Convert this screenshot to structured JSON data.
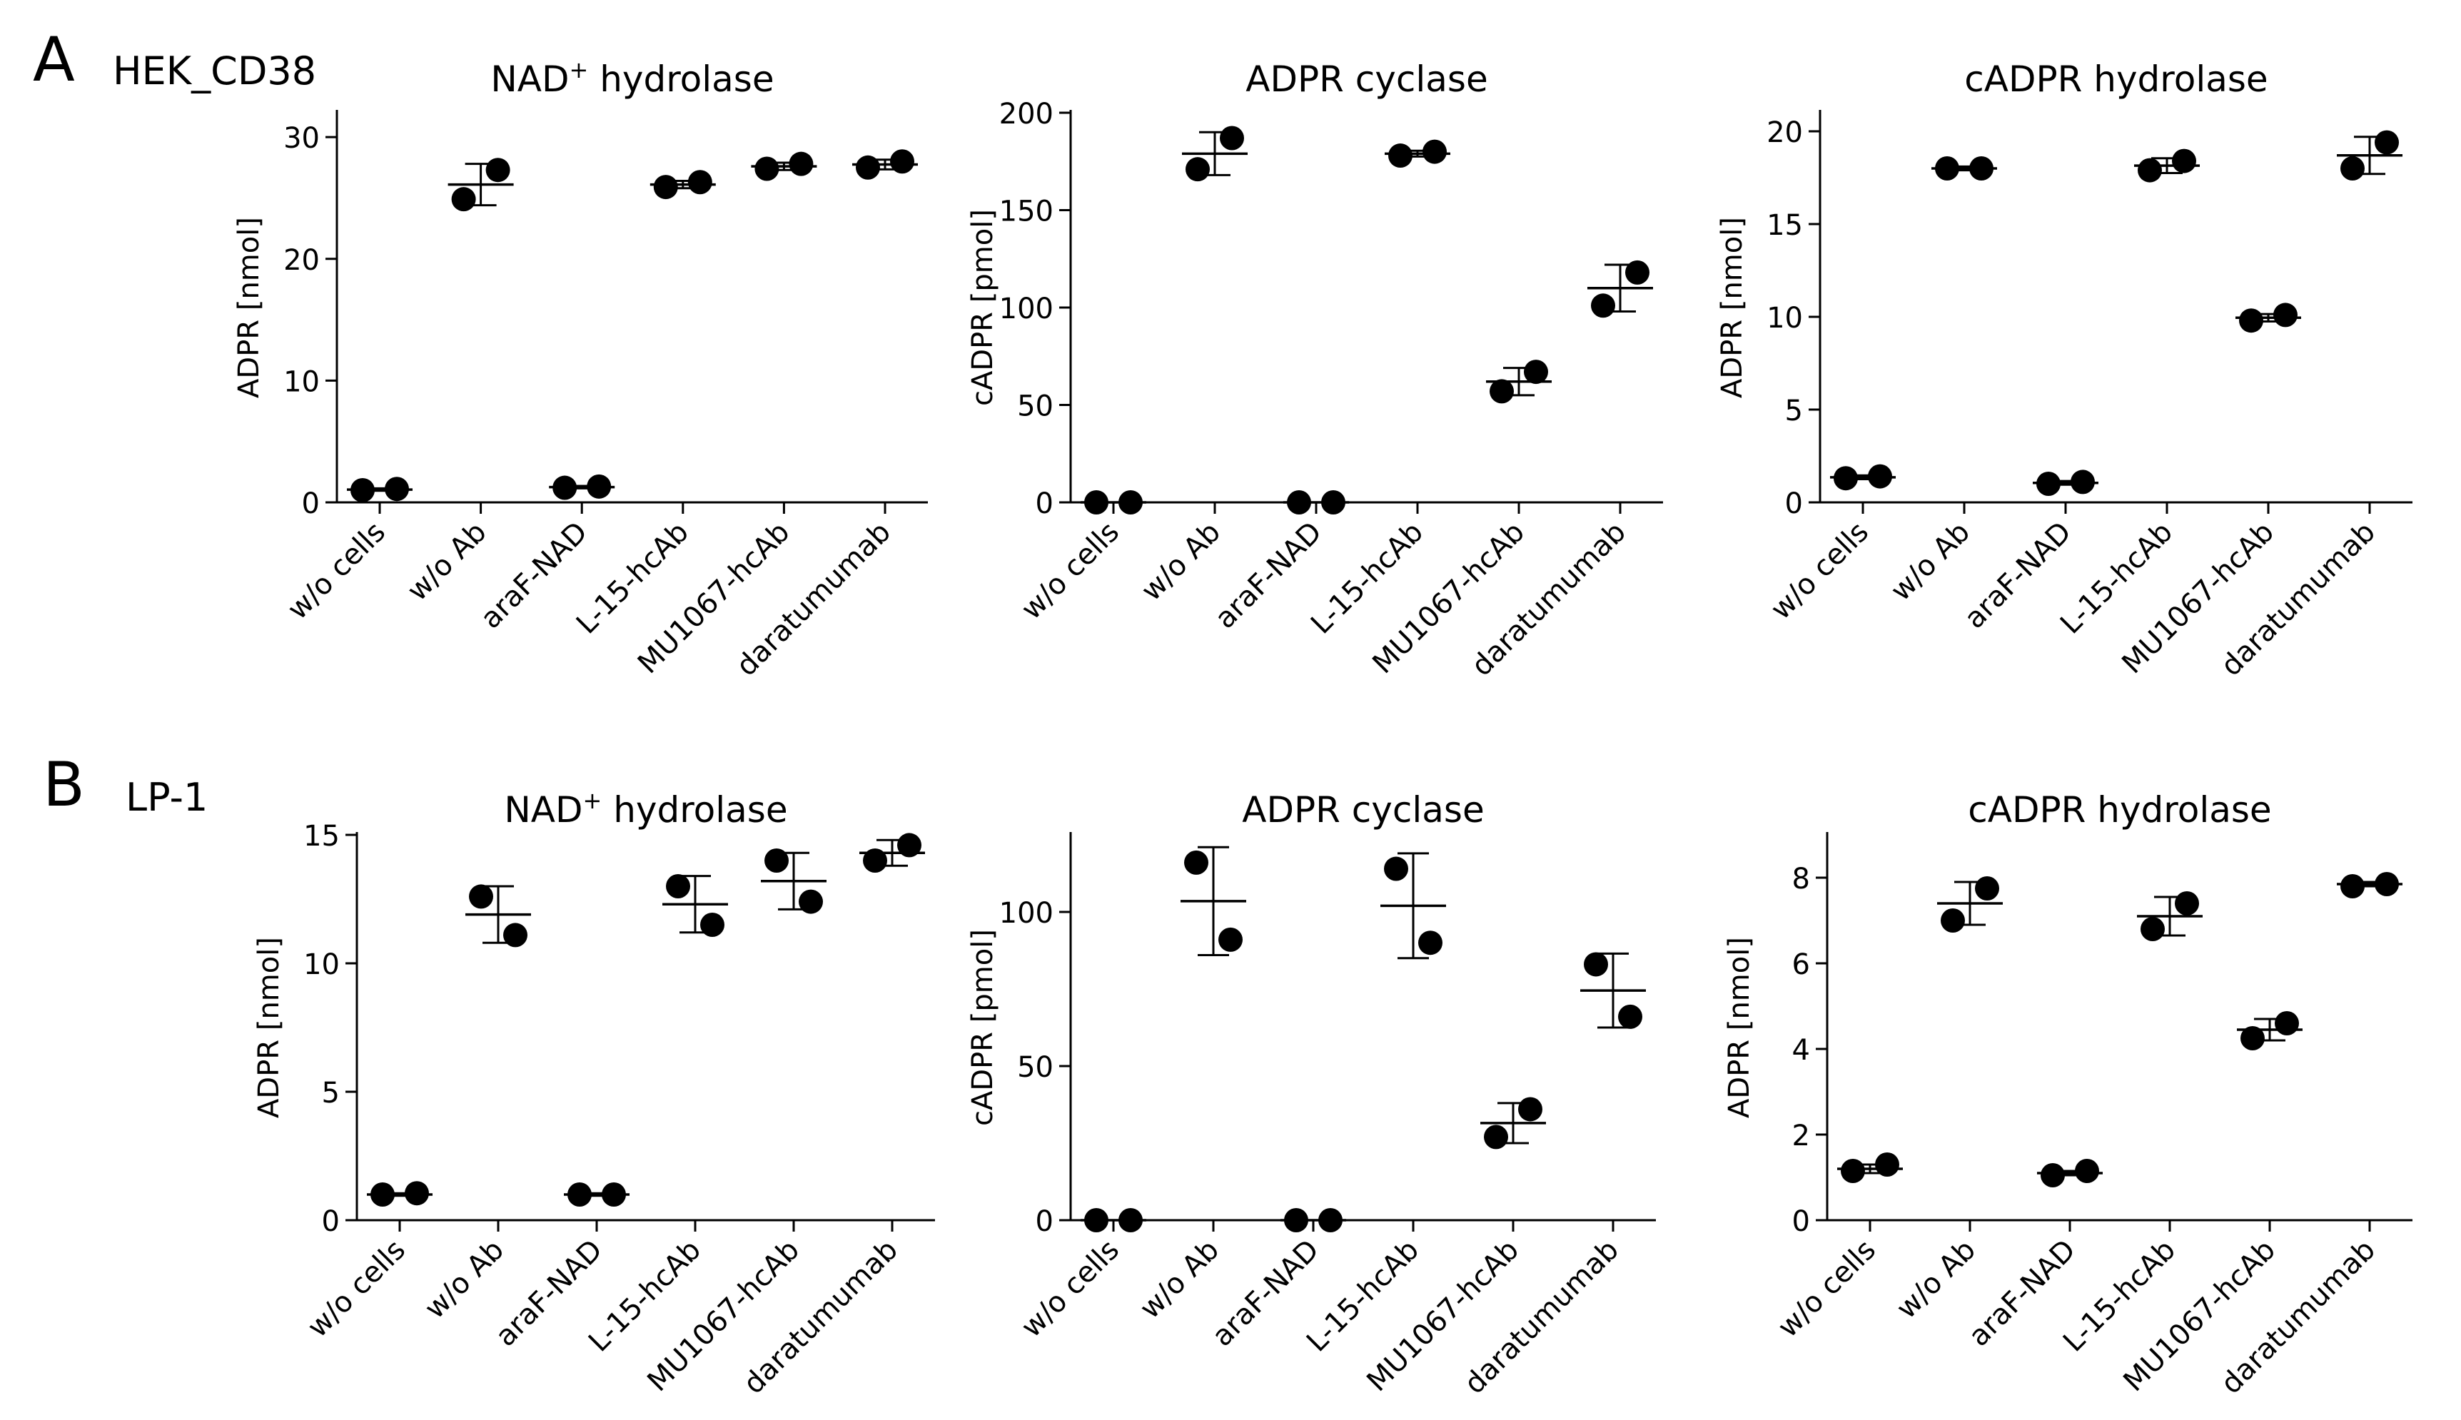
{
  "panels": [
    {
      "letter": "A",
      "label": "HEK_CD38"
    },
    {
      "letter": "B",
      "label": "LP-1"
    }
  ],
  "categories": [
    "w/o cells",
    "w/o Ab",
    "araF-NAD",
    "L-15-hcAb",
    "MU1067-hcAb",
    "daratumumab"
  ],
  "chart_data": [
    {
      "panel": "A",
      "type": "scatter",
      "title_main": "NAD",
      "title_sup": "+",
      "title_rest": " hydrolase",
      "title": "NAD+ hydrolase",
      "ylabel": "ADPR [nmol]",
      "ylim": [
        0,
        32
      ],
      "yticks": [
        0,
        10,
        20,
        30
      ],
      "categories": [
        "w/o cells",
        "w/o Ab",
        "araF-NAD",
        "L-15-hcAb",
        "MU1067-hcAb",
        "daratumumab"
      ],
      "points": [
        [
          1.0,
          1.1
        ],
        [
          24.9,
          27.3
        ],
        [
          1.2,
          1.3
        ],
        [
          25.9,
          26.3
        ],
        [
          27.4,
          27.8
        ],
        [
          27.5,
          28.0
        ]
      ],
      "mean": [
        1.05,
        26.1,
        1.25,
        26.1,
        27.6,
        27.75
      ],
      "err": [
        0.1,
        1.7,
        0.1,
        0.3,
        0.3,
        0.4
      ]
    },
    {
      "panel": "A",
      "type": "scatter",
      "title_main": "ADPR cyclase",
      "title_sup": "",
      "title_rest": "",
      "title": "ADPR cyclase",
      "ylabel": "cADPR [pmol]",
      "ylim": [
        0,
        200
      ],
      "yticks": [
        0,
        50,
        100,
        150,
        200
      ],
      "categories": [
        "w/o cells",
        "w/o Ab",
        "araF-NAD",
        "L-15-hcAb",
        "MU1067-hcAb",
        "daratumumab"
      ],
      "points": [
        [
          0,
          0
        ],
        [
          171,
          187
        ],
        [
          0,
          0
        ],
        [
          178,
          180
        ],
        [
          57,
          67
        ],
        [
          101,
          118
        ]
      ],
      "mean": [
        0,
        179,
        0,
        179,
        62,
        110
      ],
      "err": [
        0,
        11,
        0,
        1.5,
        7,
        12
      ]
    },
    {
      "panel": "A",
      "type": "scatter",
      "title_main": "cADPR hydrolase",
      "title_sup": "",
      "title_rest": "",
      "title": "cADPR hydrolase",
      "ylabel": "ADPR [nmol]",
      "ylim": [
        0,
        21
      ],
      "yticks": [
        0,
        5,
        10,
        15,
        20
      ],
      "categories": [
        "w/o cells",
        "w/o Ab",
        "araF-NAD",
        "L-15-hcAb",
        "MU1067-hcAb",
        "daratumumab"
      ],
      "points": [
        [
          1.3,
          1.4
        ],
        [
          18.0,
          18.0
        ],
        [
          1.0,
          1.1
        ],
        [
          17.9,
          18.4
        ],
        [
          9.8,
          10.1
        ],
        [
          18.0,
          19.4
        ]
      ],
      "mean": [
        1.35,
        18.0,
        1.05,
        18.15,
        9.95,
        18.7
      ],
      "err": [
        0.1,
        0.1,
        0.1,
        0.4,
        0.2,
        1.0
      ]
    },
    {
      "panel": "B",
      "type": "scatter",
      "title_main": "NAD",
      "title_sup": "+",
      "title_rest": " hydrolase",
      "title": "NAD+ hydrolase",
      "ylabel": "ADPR [nmol]",
      "ylim": [
        0,
        15
      ],
      "yticks": [
        0,
        5,
        10,
        15
      ],
      "categories": [
        "w/o cells",
        "w/o Ab",
        "araF-NAD",
        "L-15-hcAb",
        "MU1067-hcAb",
        "daratumumab"
      ],
      "points": [
        [
          1.0,
          1.05
        ],
        [
          12.6,
          11.1
        ],
        [
          1.0,
          1.0
        ],
        [
          13.0,
          11.5
        ],
        [
          14.0,
          12.4
        ],
        [
          14.0,
          14.6
        ]
      ],
      "mean": [
        1.0,
        11.9,
        1.0,
        12.3,
        13.2,
        14.3
      ],
      "err": [
        0.05,
        1.1,
        0.05,
        1.1,
        1.1,
        0.5
      ]
    },
    {
      "panel": "B",
      "type": "scatter",
      "title_main": "ADPR cyclase",
      "title_sup": "",
      "title_rest": "",
      "title": "ADPR cyclase",
      "ylabel": "cADPR [pmol]",
      "ylim": [
        0,
        125
      ],
      "yticks": [
        0,
        50,
        100
      ],
      "categories": [
        "w/o cells",
        "w/o Ab",
        "araF-NAD",
        "L-15-hcAb",
        "MU1067-hcAb",
        "daratumumab"
      ],
      "points": [
        [
          0,
          0
        ],
        [
          116,
          91
        ],
        [
          0,
          0
        ],
        [
          114,
          90
        ],
        [
          27,
          36
        ],
        [
          83,
          66
        ]
      ],
      "mean": [
        0,
        103.5,
        0,
        102,
        31.5,
        74.5
      ],
      "err": [
        0,
        17.5,
        0,
        17,
        6.5,
        12
      ]
    },
    {
      "panel": "B",
      "type": "scatter",
      "title_main": "cADPR hydrolase",
      "title_sup": "",
      "title_rest": "",
      "title": "cADPR hydrolase",
      "ylabel": "ADPR [nmol]",
      "ylim": [
        0,
        9
      ],
      "yticks": [
        0,
        2,
        4,
        6,
        8
      ],
      "categories": [
        "w/o cells",
        "w/o Ab",
        "araF-NAD",
        "L-15-hcAb",
        "MU1067-hcAb",
        "daratumumab"
      ],
      "points": [
        [
          1.15,
          1.3
        ],
        [
          7.0,
          7.75
        ],
        [
          1.05,
          1.15
        ],
        [
          6.8,
          7.4
        ],
        [
          4.25,
          4.6
        ],
        [
          7.8,
          7.85
        ]
      ],
      "mean": [
        1.2,
        7.4,
        1.1,
        7.1,
        4.45,
        7.85
      ],
      "err": [
        0.1,
        0.5,
        0.05,
        0.45,
        0.25,
        0.05
      ]
    }
  ]
}
